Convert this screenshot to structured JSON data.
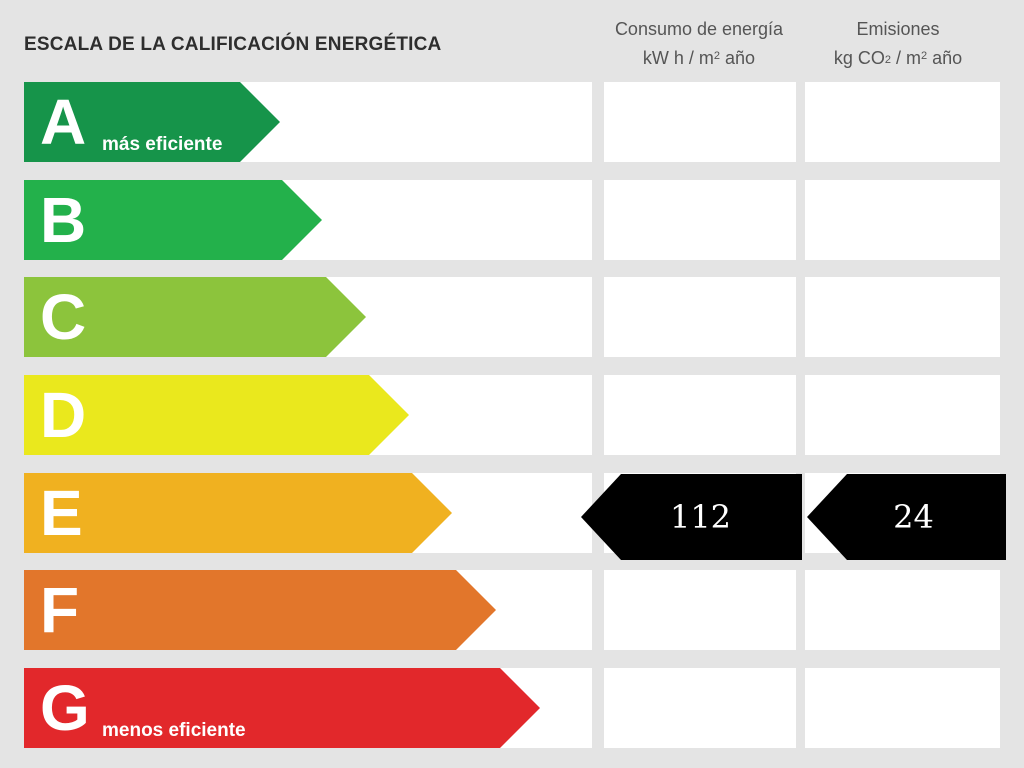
{
  "title": "ESCALA DE LA CALIFICACIÓN ENERGÉTICA",
  "columns": {
    "consumo": {
      "line1": "Consumo de energía",
      "unit_a": "kW h  / m",
      "unit_sup": "2",
      "unit_b": " año"
    },
    "emisiones": {
      "line1": "Emisiones",
      "unit_a": "kg CO",
      "unit_sub": "2",
      "unit_b": "  / m",
      "unit_sup": "2",
      "unit_c": " año"
    }
  },
  "chart_data": {
    "type": "table",
    "ratings": [
      {
        "letter": "A",
        "sublabel": "más eficiente",
        "color": "#16944a"
      },
      {
        "letter": "B",
        "sublabel": "",
        "color": "#23b14b"
      },
      {
        "letter": "C",
        "sublabel": "",
        "color": "#8cc43c"
      },
      {
        "letter": "D",
        "sublabel": "",
        "color": "#eae81d"
      },
      {
        "letter": "E",
        "sublabel": "",
        "color": "#f0b120"
      },
      {
        "letter": "F",
        "sublabel": "",
        "color": "#e2762b"
      },
      {
        "letter": "G",
        "sublabel": "menos eficiente",
        "color": "#e2282b"
      }
    ],
    "selected_rating": "E",
    "consumo_value": "112",
    "emisiones_value": "24"
  }
}
